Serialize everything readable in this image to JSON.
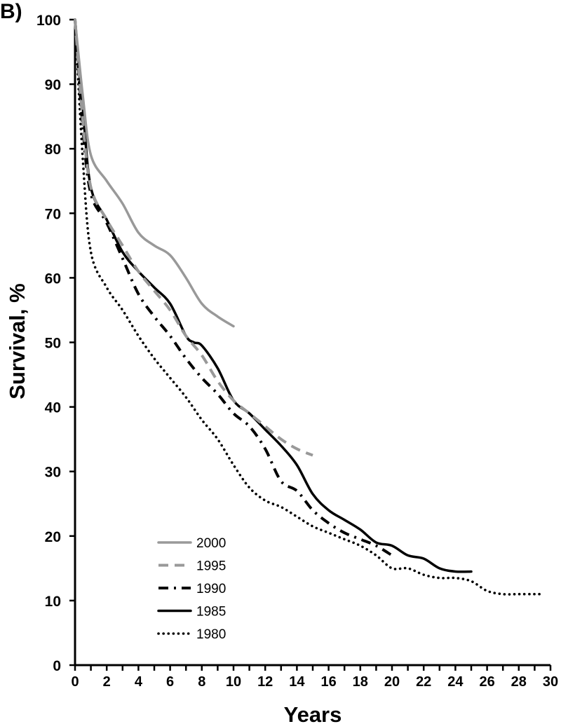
{
  "panel_label": "B)",
  "chart_data": {
    "type": "line",
    "title": "",
    "xlabel": "Years",
    "ylabel": "Survival, %",
    "xlim": [
      0,
      30
    ],
    "ylim": [
      0,
      100
    ],
    "xticks": [
      0,
      2,
      4,
      6,
      8,
      10,
      12,
      14,
      16,
      18,
      20,
      22,
      24,
      26,
      28,
      30
    ],
    "yticks": [
      0,
      10,
      20,
      30,
      40,
      50,
      60,
      70,
      80,
      90,
      100
    ],
    "grid": false,
    "legend_position": "lower-left",
    "series": [
      {
        "name": "2000",
        "color": "#999999",
        "style": "solid",
        "x": [
          0,
          0.5,
          1,
          2,
          3,
          4,
          5,
          6,
          7,
          8,
          9,
          10
        ],
        "y": [
          100,
          88,
          79,
          75,
          71.5,
          67,
          65,
          63.5,
          60,
          56,
          54,
          52.5
        ]
      },
      {
        "name": "1995",
        "color": "#999999",
        "style": "dashed",
        "x": [
          0,
          0.5,
          1,
          2,
          3,
          4,
          5,
          6,
          7,
          8,
          9,
          10,
          11,
          12,
          13,
          14,
          15
        ],
        "y": [
          100,
          84,
          74,
          69,
          65,
          61,
          58,
          55,
          51,
          48,
          44,
          41,
          39,
          37,
          35,
          33.5,
          32.5
        ]
      },
      {
        "name": "1990",
        "color": "#000000",
        "style": "dashdot",
        "x": [
          0,
          0.5,
          1,
          2,
          3,
          4,
          5,
          6,
          7,
          8,
          9,
          10,
          11,
          12,
          13,
          14,
          15,
          16,
          17,
          18,
          19,
          20
        ],
        "y": [
          100,
          83,
          73,
          68.5,
          63,
          57.5,
          54,
          51,
          47.5,
          44.5,
          42,
          39,
          37,
          33.5,
          28.5,
          27,
          24,
          22,
          20.5,
          19.5,
          18.5,
          17
        ]
      },
      {
        "name": "1985",
        "color": "#000000",
        "style": "solid",
        "x": [
          0,
          0.5,
          1,
          2,
          3,
          4,
          5,
          6,
          7,
          7.5,
          8,
          9,
          10,
          11,
          12,
          13,
          14,
          15,
          16,
          17,
          18,
          19,
          20,
          21,
          22,
          23,
          24,
          25
        ],
        "y": [
          100,
          86,
          74,
          69,
          64,
          61,
          58.5,
          56,
          51,
          50,
          49.5,
          46,
          41,
          39,
          36.5,
          34,
          31,
          26.5,
          24,
          22.5,
          21,
          19,
          18.5,
          17,
          16.5,
          15,
          14.5,
          14.5
        ]
      },
      {
        "name": "1980",
        "color": "#000000",
        "style": "dotted",
        "x": [
          0,
          0.5,
          1,
          2,
          3,
          4,
          5,
          6,
          7,
          8,
          9,
          10,
          11,
          12,
          13,
          14,
          15,
          16,
          17,
          18,
          19,
          20,
          21,
          22,
          23,
          24,
          25,
          26,
          27,
          28,
          29,
          29.5
        ],
        "y": [
          100,
          78,
          64,
          58.5,
          55,
          51,
          47.5,
          44.5,
          41.5,
          38,
          35,
          31,
          27.5,
          25.5,
          24.5,
          23,
          21.5,
          20.5,
          19.5,
          18.5,
          17,
          15,
          15,
          14,
          13.5,
          13.5,
          13,
          11.5,
          11,
          11,
          11,
          11
        ]
      }
    ]
  }
}
